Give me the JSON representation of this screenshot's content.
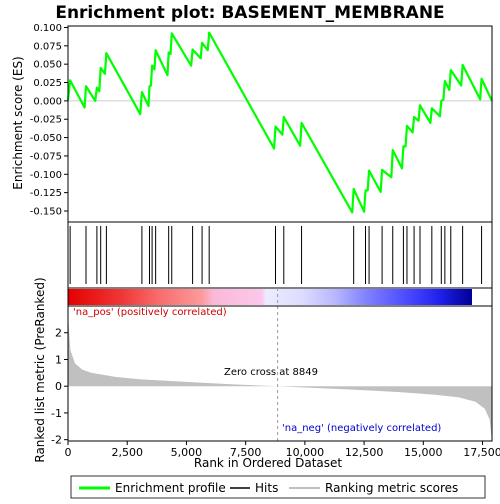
{
  "chart_data": {
    "type": "line",
    "title": "Enrichment plot: BASEMENT_MEMBRANE",
    "top_panel": {
      "ylabel": "Enrichment score (ES)",
      "ylim": [
        -0.165,
        0.102
      ],
      "y_ticks": [
        0.1,
        0.075,
        0.05,
        0.025,
        0.0,
        -0.025,
        -0.05,
        -0.075,
        -0.1,
        -0.125,
        -0.15
      ],
      "y_tick_labels": [
        "0.100",
        "0.075",
        "0.050",
        "0.025",
        "0.000",
        "-0.025",
        "-0.050",
        "-0.075",
        "-0.100",
        "-0.125",
        "-0.150"
      ],
      "line_color": "#00ff00",
      "series": [
        {
          "name": "Enrichment profile",
          "x": [
            0,
            90,
            700,
            760,
            1150,
            1220,
            1320,
            1380,
            1560,
            1620,
            3050,
            3120,
            3400,
            3440,
            3500,
            3550,
            3650,
            3700,
            4200,
            4250,
            4330,
            4380,
            5200,
            5260,
            5600,
            5660,
            5900,
            5960,
            8700,
            8760,
            9050,
            9110,
            9800,
            9860,
            12000,
            12060,
            12500,
            12560,
            12650,
            12710,
            13200,
            13260,
            13650,
            13710,
            14100,
            14160,
            14250,
            14310,
            14550,
            14610,
            14800,
            14860,
            15300,
            15360,
            15700,
            15760,
            15850,
            15910,
            16100,
            16160,
            16600,
            16660,
            17400,
            17460,
            17900
          ],
          "y": [
            0.001,
            0.028,
            -0.009,
            0.02,
            0.0,
            0.018,
            0.013,
            0.045,
            0.037,
            0.065,
            -0.018,
            0.012,
            -0.007,
            0.02,
            0.021,
            0.048,
            0.043,
            0.069,
            0.035,
            0.066,
            0.064,
            0.092,
            0.048,
            0.07,
            0.058,
            0.079,
            0.069,
            0.093,
            -0.065,
            -0.035,
            -0.046,
            -0.022,
            -0.061,
            -0.03,
            -0.152,
            -0.12,
            -0.151,
            -0.122,
            -0.122,
            -0.095,
            -0.124,
            -0.094,
            -0.104,
            -0.067,
            -0.092,
            -0.062,
            -0.062,
            -0.034,
            -0.043,
            -0.022,
            -0.027,
            -0.006,
            -0.03,
            -0.01,
            -0.021,
            0.0,
            0.002,
            0.027,
            0.015,
            0.042,
            0.021,
            0.049,
            0.002,
            0.03,
            0.0
          ]
        }
      ]
    },
    "hits": [
      90,
      760,
      1220,
      1380,
      1620,
      3120,
      3440,
      3550,
      3700,
      4250,
      4380,
      5260,
      5660,
      5960,
      8760,
      9110,
      9860,
      12060,
      12560,
      12710,
      13260,
      13710,
      14160,
      14310,
      14610,
      14860,
      15360,
      15760,
      15910,
      16160,
      16660,
      17460
    ],
    "bottom_panel": {
      "ylabel": "Ranked list metric (PreRanked)",
      "xlabel": "Rank in Ordered Dataset",
      "ylim": [
        -2.05,
        3.0
      ],
      "y_ticks": [
        2,
        1,
        0,
        -1,
        -2
      ],
      "y_tick_labels": [
        "2",
        "1",
        "0",
        "-1",
        "-2"
      ],
      "x_ticks": [
        0,
        2500,
        5000,
        7500,
        10000,
        12500,
        15000,
        17500
      ],
      "x_tick_labels": [
        "0",
        "2,500",
        "5,000",
        "7,500",
        "10,000",
        "12,500",
        "15,000",
        "17,500"
      ],
      "fill_color": "#c0c0c0",
      "metric_x": [
        0,
        100,
        300,
        600,
        1000,
        2000,
        3000,
        5000,
        7000,
        8849,
        10000,
        12000,
        14000,
        15500,
        16500,
        17200,
        17600,
        17800,
        17880,
        17900
      ],
      "metric_y": [
        2.7,
        1.35,
        0.85,
        0.62,
        0.5,
        0.35,
        0.26,
        0.16,
        0.07,
        0.0,
        -0.05,
        -0.13,
        -0.22,
        -0.32,
        -0.42,
        -0.58,
        -0.85,
        -1.25,
        -1.9,
        -1.95
      ],
      "zero_cross": 8849,
      "zero_cross_label": "Zero cross at 8849",
      "pos_label": "'na_pos' (positively correlated)",
      "neg_label": "'na_neg' (negatively correlated)"
    },
    "x_range": [
      0,
      17900
    ],
    "legend": [
      {
        "label": "Enrichment profile",
        "color": "#00ff00"
      },
      {
        "label": "Hits",
        "color": "#000000"
      },
      {
        "label": "Ranking metric scores",
        "color": "#c0c0c0"
      }
    ]
  }
}
